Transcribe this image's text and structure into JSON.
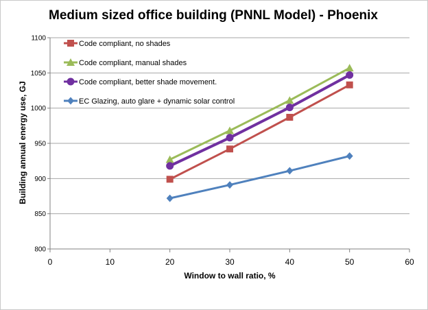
{
  "chart_data": {
    "type": "line",
    "title": "Medium sized office building (PNNL Model) - Phoenix",
    "xlabel": "Window to wall ratio, %",
    "ylabel": "Building annual energy use, GJ",
    "xlim": [
      0,
      60
    ],
    "ylim": [
      800,
      1100
    ],
    "xticks": [
      "0",
      "10",
      "20",
      "30",
      "40",
      "50",
      "60"
    ],
    "yticks": [
      "800",
      "850",
      "900",
      "950",
      "1000",
      "1050",
      "1100"
    ],
    "grid": "horizontal",
    "legend_position": "top-left",
    "x": [
      20,
      30,
      40,
      50
    ],
    "series": [
      {
        "name": "Code compliant, no shades",
        "values": [
          899,
          942,
          987,
          1033
        ],
        "color": "#c0504d",
        "marker": "square"
      },
      {
        "name": "Code compliant, manual shades",
        "values": [
          927,
          968,
          1011,
          1057
        ],
        "color": "#9bbb59",
        "marker": "triangle"
      },
      {
        "name": "Code compliant, better shade movement.",
        "values": [
          918,
          958,
          1001,
          1047
        ],
        "color": "#7030a0",
        "marker": "circle"
      },
      {
        "name": "EC Glazing, auto glare + dynamic solar control",
        "values": [
          872,
          891,
          911,
          932
        ],
        "color": "#4f81bd",
        "marker": "diamond"
      }
    ]
  }
}
